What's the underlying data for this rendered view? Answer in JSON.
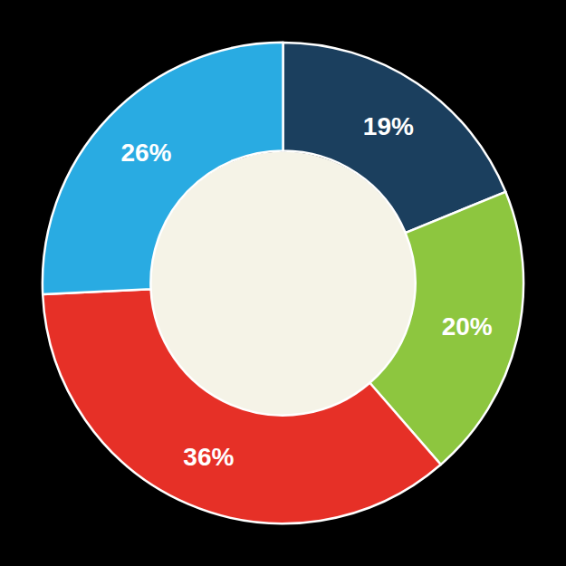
{
  "chart_data": {
    "type": "pie",
    "values": [
      19,
      20,
      36,
      26
    ],
    "value_labels": [
      "19%",
      "20%",
      "36%",
      "26%"
    ],
    "colors": [
      "#1b3f5e",
      "#8dc63f",
      "#e63027",
      "#29abe2"
    ],
    "data_labels": true
  }
}
